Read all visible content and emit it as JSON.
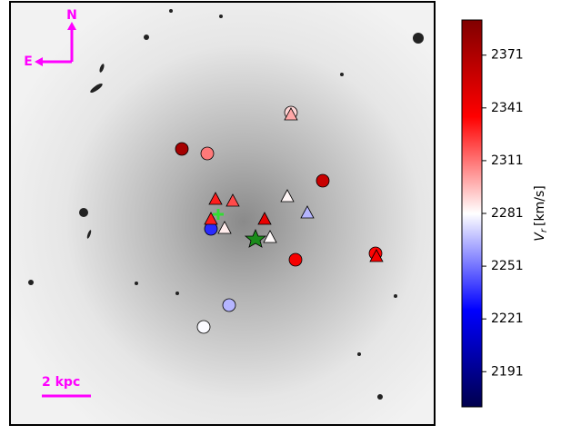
{
  "chart_data": {
    "type": "scatter",
    "compass": {
      "north": "N",
      "east": "E"
    },
    "scale_bar": "2 kpc",
    "circles": {
      "values": [
        2290,
        2375,
        2310,
        2360,
        2235,
        2340,
        2335,
        2265,
        2280
      ]
    },
    "triangles": {
      "values": [
        2300,
        2330,
        2320,
        2283,
        2265,
        2345,
        2330,
        2285,
        2282,
        2340
      ]
    },
    "colorbar": {
      "label": "V",
      "label_sub": "r",
      "label_unit": "[km/s]",
      "colormap": "seismic",
      "lim": [
        2171,
        2391
      ],
      "ticks": [
        2191,
        2221,
        2251,
        2281,
        2311,
        2341,
        2371
      ]
    }
  }
}
